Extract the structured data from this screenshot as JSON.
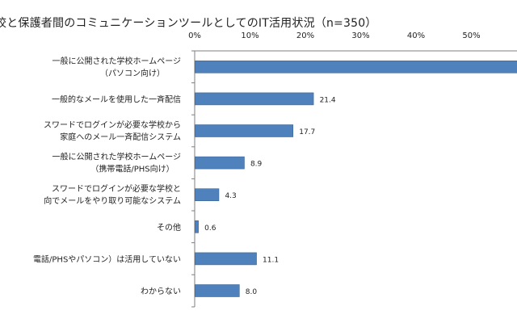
{
  "chart_data": {
    "type": "bar",
    "orientation": "horizontal",
    "title": "校と保護者間のコミュニケーションツールとしてのIT活用状況（n=350）",
    "categories": [
      [
        "一般に公開された学校ホームページ",
        "（パソコン向け）"
      ],
      [
        "一般的なメールを使用した一斉配信"
      ],
      [
        "スワードでログインが必要な学校から",
        "家庭へのメール一斉配信システム"
      ],
      [
        "一般に公開された学校ホームページ",
        "（携帯電話/PHS向け）"
      ],
      [
        "スワードでログインが必要な学校と",
        "向でメールをやり取り可能なシステム"
      ],
      [
        "その他"
      ],
      [
        "電話/PHSやパソコン）は活用していない"
      ],
      [
        "わからない"
      ]
    ],
    "values": [
      67,
      21.4,
      17.7,
      8.9,
      4.3,
      0.6,
      11.1,
      8.0
    ],
    "value_labels": [
      "",
      "21.4",
      "17.7",
      "8.9",
      "4.3",
      "0.6",
      "11.1",
      "8.0"
    ],
    "ticks": [
      "0%",
      "10%",
      "20%",
      "30%",
      "40%",
      "50%"
    ],
    "xlim": [
      0,
      67
    ],
    "grid": false,
    "colors": {
      "bar": "#4f81bd",
      "bar_edge": "#3a6596",
      "axis": "#7f7f7f"
    }
  }
}
